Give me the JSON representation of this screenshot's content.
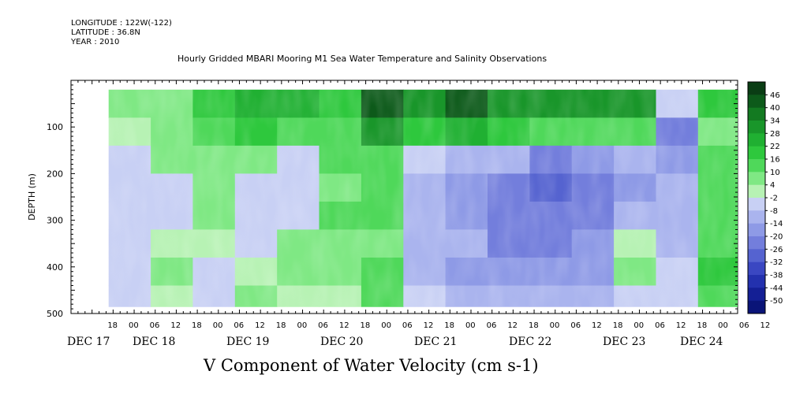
{
  "header": {
    "longitude": "LONGITUDE : 122W(-122)",
    "latitude": "LATITUDE : 36.8N",
    "year": "YEAR : 2010"
  },
  "chart_data": {
    "type": "heatmap",
    "title": "Hourly Gridded MBARI Mooring M1 Sea Water Temperature and Salinity Observations",
    "xlabel": "V Component of Water Velocity (cm s-1)",
    "ylabel": "DEPTH (m)",
    "ylim": [
      500,
      0
    ],
    "yticks": [
      100,
      200,
      300,
      400,
      500
    ],
    "x_hour_ticks": [
      "18",
      "00",
      "06",
      "12",
      "18",
      "00",
      "06",
      "12",
      "18",
      "00",
      "06",
      "12",
      "18",
      "00",
      "06",
      "12",
      "18",
      "00",
      "06",
      "12",
      "18",
      "00",
      "06",
      "12",
      "18",
      "00",
      "06",
      "12",
      "18",
      "00",
      "06",
      "12"
    ],
    "x_day_labels": [
      "DEC 17",
      "DEC 18",
      "DEC 19",
      "DEC 20",
      "DEC 21",
      "DEC 22",
      "DEC 23",
      "DEC 24"
    ],
    "colorbar": {
      "labels": [
        "46",
        "40",
        "34",
        "28",
        "22",
        "16",
        "10",
        "4",
        "-2",
        "-8",
        "-14",
        "-20",
        "-26",
        "-32",
        "-38",
        "-44",
        "-50"
      ],
      "colors": [
        "#0a3d14",
        "#0d5a1a",
        "#137a21",
        "#19962a",
        "#20b032",
        "#2ec83d",
        "#4fd85a",
        "#7fe884",
        "#b7f2b4",
        "#c8d0f4",
        "#aab4ee",
        "#8e9ae6",
        "#737edc",
        "#5563d0",
        "#3a47c2",
        "#2331ae",
        "#141f95",
        "#0a1478"
      ],
      "range": [
        -50,
        46
      ]
    },
    "columns": [
      {
        "start_hour": 0,
        "profile": [
          5,
          2,
          -3,
          -6,
          -4,
          -2,
          -5,
          -3
        ]
      },
      {
        "start_hour": 12,
        "profile": [
          8,
          6,
          4,
          -2,
          -5,
          3,
          6,
          2
        ]
      },
      {
        "start_hour": 24,
        "profile": [
          18,
          14,
          8,
          6,
          4,
          2,
          -2,
          -4
        ]
      },
      {
        "start_hour": 36,
        "profile": [
          20,
          16,
          4,
          -4,
          -6,
          -2,
          2,
          4
        ]
      },
      {
        "start_hour": 48,
        "profile": [
          22,
          10,
          -4,
          -6,
          -2,
          4,
          6,
          2
        ]
      },
      {
        "start_hour": 60,
        "profile": [
          16,
          12,
          10,
          8,
          10,
          6,
          4,
          2
        ]
      },
      {
        "start_hour": 72,
        "profile": [
          40,
          28,
          14,
          12,
          10,
          8,
          10,
          14
        ]
      },
      {
        "start_hour": 84,
        "profile": [
          30,
          18,
          -6,
          -12,
          -10,
          -8,
          -10,
          -6
        ]
      },
      {
        "start_hour": 96,
        "profile": [
          36,
          20,
          -10,
          -14,
          -16,
          -12,
          -14,
          -10
        ]
      },
      {
        "start_hour": 108,
        "profile": [
          30,
          16,
          -10,
          -18,
          -20,
          -18,
          -14,
          -12
        ]
      },
      {
        "start_hour": 120,
        "profile": [
          28,
          10,
          -22,
          -26,
          -20,
          -18,
          -16,
          -12
        ]
      },
      {
        "start_hour": 132,
        "profile": [
          30,
          14,
          -16,
          -20,
          -18,
          -16,
          -14,
          -10
        ]
      },
      {
        "start_hour": 144,
        "profile": [
          30,
          12,
          -10,
          -14,
          -10,
          2,
          6,
          -6
        ]
      },
      {
        "start_hour": 156,
        "profile": [
          -4,
          -18,
          -16,
          -12,
          -10,
          -8,
          -6,
          -4
        ]
      },
      {
        "start_hour": 168,
        "profile": [
          16,
          8,
          12,
          14,
          10,
          12,
          16,
          10
        ]
      }
    ]
  }
}
